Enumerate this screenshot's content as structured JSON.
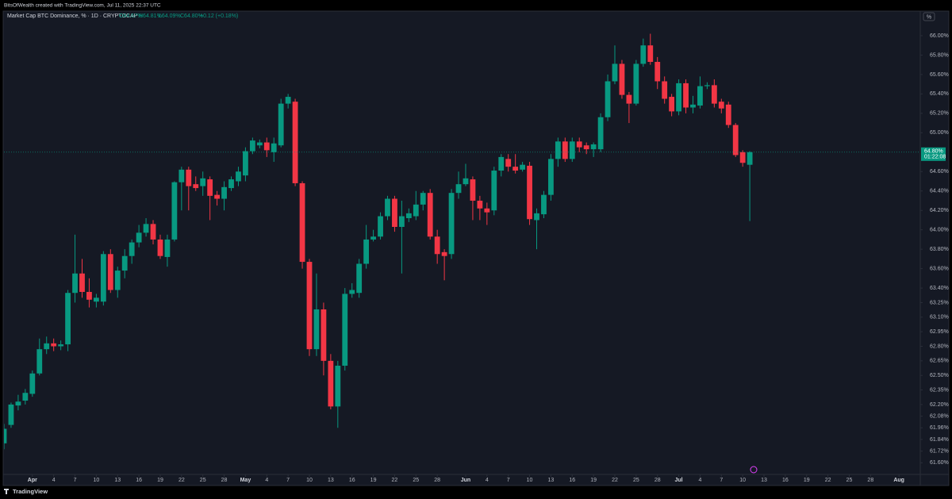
{
  "header": "BitsOfWealth created with TradingView.com, Jul 11, 2025 22:37 UTC",
  "footer": "TradingView",
  "chart_data": {
    "type": "candlestick",
    "title": "Market Cap BTC Dominance, % · 1D · CRYPTOCAP",
    "ohlc_legend": [
      "O64.67%",
      "H64.81%",
      "L64.09%",
      "C64.80%",
      "+0.12 (+0.18%)"
    ],
    "scale_button": "%",
    "up_color": "#089981",
    "down_color": "#f23645",
    "last_price": {
      "value": 64.8,
      "label": "64.80%"
    },
    "countdown": "01:22:08",
    "x": [
      "2025-03-28",
      "2025-03-29",
      "2025-03-30",
      "2025-03-31",
      "2025-04-01",
      "2025-04-02",
      "2025-04-03",
      "2025-04-04",
      "2025-04-05",
      "2025-04-06",
      "2025-04-07",
      "2025-04-08",
      "2025-04-09",
      "2025-04-10",
      "2025-04-11",
      "2025-04-12",
      "2025-04-13",
      "2025-04-14",
      "2025-04-15",
      "2025-04-16",
      "2025-04-17",
      "2025-04-18",
      "2025-04-19",
      "2025-04-20",
      "2025-04-21",
      "2025-04-22",
      "2025-04-23",
      "2025-04-24",
      "2025-04-25",
      "2025-04-26",
      "2025-04-27",
      "2025-04-28",
      "2025-04-29",
      "2025-04-30",
      "2025-05-01",
      "2025-05-02",
      "2025-05-03",
      "2025-05-04",
      "2025-05-05",
      "2025-05-06",
      "2025-05-07",
      "2025-05-08",
      "2025-05-09",
      "2025-05-10",
      "2025-05-11",
      "2025-05-12",
      "2025-05-13",
      "2025-05-14",
      "2025-05-15",
      "2025-05-16",
      "2025-05-17",
      "2025-05-18",
      "2025-05-19",
      "2025-05-20",
      "2025-05-21",
      "2025-05-22",
      "2025-05-23",
      "2025-05-24",
      "2025-05-25",
      "2025-05-26",
      "2025-05-27",
      "2025-05-28",
      "2025-05-29",
      "2025-05-30",
      "2025-05-31",
      "2025-06-01",
      "2025-06-02",
      "2025-06-03",
      "2025-06-04",
      "2025-06-05",
      "2025-06-06",
      "2025-06-07",
      "2025-06-08",
      "2025-06-09",
      "2025-06-10",
      "2025-06-11",
      "2025-06-12",
      "2025-06-13",
      "2025-06-14",
      "2025-06-15",
      "2025-06-16",
      "2025-06-17",
      "2025-06-18",
      "2025-06-19",
      "2025-06-20",
      "2025-06-21",
      "2025-06-22",
      "2025-06-23",
      "2025-06-24",
      "2025-06-25",
      "2025-06-26",
      "2025-06-27",
      "2025-06-28",
      "2025-06-29",
      "2025-06-30",
      "2025-07-01",
      "2025-07-02",
      "2025-07-03",
      "2025-07-04",
      "2025-07-05",
      "2025-07-06",
      "2025-07-07",
      "2025-07-08",
      "2025-07-09",
      "2025-07-10",
      "2025-07-11"
    ],
    "open": [
      61.8,
      61.99,
      62.19,
      62.24,
      62.31,
      62.52,
      62.77,
      62.83,
      62.8,
      62.82,
      63.35,
      63.55,
      63.36,
      63.26,
      63.26,
      63.75,
      63.38,
      63.58,
      63.73,
      63.87,
      63.97,
      64.06,
      63.9,
      63.72,
      63.9,
      64.49,
      64.62,
      64.47,
      64.45,
      64.52,
      64.36,
      64.32,
      64.43,
      64.5,
      64.56,
      64.81,
      64.87,
      64.9,
      64.8,
      64.87,
      65.3,
      65.32,
      64.48,
      63.67,
      62.77,
      63.18,
      62.65,
      62.18,
      62.6,
      63.34,
      63.35,
      63.65,
      63.9,
      63.93,
      64.14,
      64.32,
      64.03,
      64.12,
      64.14,
      64.26,
      64.38,
      63.93,
      63.77,
      63.75,
      64.38,
      64.47,
      64.52,
      64.3,
      64.22,
      64.2,
      64.61,
      64.73,
      64.65,
      64.62,
      64.66,
      64.1,
      64.16,
      64.36,
      64.73,
      64.91,
      64.73,
      64.91,
      64.87,
      64.83,
      64.83,
      65.16,
      65.53,
      65.71,
      65.39,
      65.3,
      65.71,
      65.9,
      65.73,
      65.53,
      65.37,
      65.22,
      65.51,
      65.26,
      65.28,
      65.48,
      65.49,
      65.32,
      65.29,
      65.08,
      64.8,
      64.67
    ],
    "high": [
      62.0,
      62.22,
      62.3,
      62.36,
      62.55,
      62.88,
      62.9,
      62.88,
      62.86,
      63.38,
      63.95,
      63.7,
      63.5,
      63.34,
      63.78,
      63.8,
      63.62,
      63.8,
      63.9,
      64.05,
      64.12,
      64.1,
      63.95,
      63.95,
      64.5,
      64.65,
      64.65,
      64.55,
      64.6,
      64.55,
      64.4,
      64.5,
      64.55,
      64.65,
      64.85,
      64.95,
      64.93,
      64.95,
      64.95,
      65.35,
      65.4,
      65.35,
      64.5,
      63.7,
      63.55,
      63.25,
      62.72,
      62.65,
      63.4,
      63.45,
      63.7,
      64.05,
      64.0,
      64.18,
      64.35,
      64.35,
      64.3,
      64.22,
      64.4,
      64.4,
      64.42,
      64.0,
      63.8,
      64.42,
      64.6,
      64.68,
      64.55,
      64.35,
      64.28,
      64.65,
      64.78,
      64.78,
      64.78,
      64.7,
      64.7,
      64.22,
      64.4,
      64.78,
      64.95,
      64.95,
      64.95,
      64.95,
      64.9,
      64.9,
      65.2,
      65.6,
      65.9,
      65.75,
      65.42,
      65.75,
      65.97,
      66.02,
      65.78,
      65.58,
      65.4,
      65.55,
      65.55,
      65.38,
      65.58,
      65.52,
      65.55,
      65.35,
      65.32,
      65.1,
      64.82,
      64.81
    ],
    "low": [
      61.74,
      61.96,
      62.14,
      62.2,
      62.28,
      62.5,
      62.72,
      62.75,
      62.76,
      62.75,
      63.25,
      63.3,
      63.2,
      63.2,
      63.22,
      63.35,
      63.3,
      63.5,
      63.65,
      63.82,
      63.93,
      63.85,
      63.7,
      63.62,
      63.88,
      64.2,
      64.2,
      64.4,
      64.35,
      64.1,
      64.25,
      64.2,
      64.4,
      64.45,
      64.5,
      64.78,
      64.84,
      64.75,
      64.7,
      64.85,
      65.25,
      64.45,
      63.6,
      62.7,
      62.7,
      62.5,
      62.15,
      61.96,
      62.55,
      63.3,
      63.3,
      63.6,
      63.88,
      63.9,
      64.1,
      63.98,
      63.55,
      64.08,
      64.1,
      64.2,
      63.9,
      63.65,
      63.48,
      63.7,
      64.32,
      64.45,
      64.1,
      64.1,
      64.05,
      64.15,
      64.55,
      64.6,
      64.58,
      64.6,
      64.05,
      63.8,
      64.12,
      64.3,
      64.65,
      64.7,
      64.7,
      64.8,
      64.78,
      64.75,
      64.8,
      65.12,
      65.5,
      65.35,
      65.1,
      65.28,
      65.68,
      65.7,
      65.45,
      65.3,
      65.17,
      65.18,
      65.2,
      65.2,
      65.25,
      65.45,
      65.26,
      65.2,
      65.05,
      64.75,
      64.65,
      64.09
    ],
    "close": [
      61.95,
      62.2,
      62.23,
      62.32,
      62.52,
      62.77,
      62.83,
      62.8,
      62.82,
      63.35,
      63.55,
      63.36,
      63.28,
      63.3,
      63.75,
      63.38,
      63.58,
      63.73,
      63.87,
      63.97,
      64.06,
      63.9,
      63.73,
      63.9,
      64.49,
      64.62,
      64.45,
      64.43,
      64.53,
      64.35,
      64.32,
      64.44,
      64.52,
      64.6,
      64.81,
      64.92,
      64.9,
      64.82,
      64.89,
      65.3,
      65.37,
      64.48,
      63.67,
      62.77,
      63.18,
      62.65,
      62.18,
      62.6,
      63.34,
      63.38,
      63.65,
      63.9,
      63.93,
      64.14,
      64.32,
      64.03,
      64.14,
      64.17,
      64.26,
      64.38,
      63.93,
      63.75,
      63.73,
      64.38,
      64.47,
      64.53,
      64.3,
      64.22,
      64.18,
      64.61,
      64.75,
      64.65,
      64.61,
      64.67,
      64.11,
      64.17,
      64.36,
      64.73,
      64.91,
      64.73,
      64.91,
      64.85,
      64.83,
      64.88,
      65.16,
      65.53,
      65.71,
      65.39,
      65.3,
      65.71,
      65.9,
      65.73,
      65.53,
      65.35,
      65.22,
      65.51,
      65.26,
      65.29,
      65.48,
      65.49,
      65.3,
      65.25,
      65.08,
      64.77,
      64.69,
      64.8
    ],
    "xlim": [
      "2025-03-28",
      "2025-08-04"
    ],
    "xticks": [
      {
        "value": "2025-04-01",
        "label": "Apr"
      },
      {
        "value": "2025-04-04",
        "label": "4"
      },
      {
        "value": "2025-04-07",
        "label": "7"
      },
      {
        "value": "2025-04-10",
        "label": "10"
      },
      {
        "value": "2025-04-13",
        "label": "13"
      },
      {
        "value": "2025-04-16",
        "label": "16"
      },
      {
        "value": "2025-04-19",
        "label": "19"
      },
      {
        "value": "2025-04-22",
        "label": "22"
      },
      {
        "value": "2025-04-25",
        "label": "25"
      },
      {
        "value": "2025-04-28",
        "label": "28"
      },
      {
        "value": "2025-05-01",
        "label": "May"
      },
      {
        "value": "2025-05-04",
        "label": "4"
      },
      {
        "value": "2025-05-07",
        "label": "7"
      },
      {
        "value": "2025-05-10",
        "label": "10"
      },
      {
        "value": "2025-05-13",
        "label": "13"
      },
      {
        "value": "2025-05-16",
        "label": "16"
      },
      {
        "value": "2025-05-19",
        "label": "19"
      },
      {
        "value": "2025-05-22",
        "label": "22"
      },
      {
        "value": "2025-05-25",
        "label": "25"
      },
      {
        "value": "2025-05-28",
        "label": "28"
      },
      {
        "value": "2025-06-01",
        "label": "Jun"
      },
      {
        "value": "2025-06-04",
        "label": "4"
      },
      {
        "value": "2025-06-07",
        "label": "7"
      },
      {
        "value": "2025-06-10",
        "label": "10"
      },
      {
        "value": "2025-06-13",
        "label": "13"
      },
      {
        "value": "2025-06-16",
        "label": "16"
      },
      {
        "value": "2025-06-19",
        "label": "19"
      },
      {
        "value": "2025-06-22",
        "label": "22"
      },
      {
        "value": "2025-06-25",
        "label": "25"
      },
      {
        "value": "2025-06-28",
        "label": "28"
      },
      {
        "value": "2025-07-01",
        "label": "Jul"
      },
      {
        "value": "2025-07-04",
        "label": "4"
      },
      {
        "value": "2025-07-07",
        "label": "7"
      },
      {
        "value": "2025-07-10",
        "label": "10"
      },
      {
        "value": "2025-07-13",
        "label": "13"
      },
      {
        "value": "2025-07-16",
        "label": "16"
      },
      {
        "value": "2025-07-19",
        "label": "19"
      },
      {
        "value": "2025-07-22",
        "label": "22"
      },
      {
        "value": "2025-07-25",
        "label": "25"
      },
      {
        "value": "2025-07-28",
        "label": "28"
      },
      {
        "value": "2025-08-01",
        "label": "Aug"
      }
    ],
    "ylim": [
      61.48,
      66.245
    ],
    "yticks": [
      {
        "value": 66,
        "label": "66.00%"
      },
      {
        "value": 65.8,
        "label": "65.80%"
      },
      {
        "value": 65.6,
        "label": "65.60%"
      },
      {
        "value": 65.4,
        "label": "65.40%"
      },
      {
        "value": 65.2,
        "label": "65.20%"
      },
      {
        "value": 65,
        "label": "65.00%"
      },
      {
        "value": 64.6,
        "label": "64.60%"
      },
      {
        "value": 64.4,
        "label": "64.40%"
      },
      {
        "value": 64.2,
        "label": "64.20%"
      },
      {
        "value": 64,
        "label": "64.00%"
      },
      {
        "value": 63.8,
        "label": "63.80%"
      },
      {
        "value": 63.6,
        "label": "63.60%"
      },
      {
        "value": 63.4,
        "label": "63.40%"
      },
      {
        "value": 63.25,
        "label": "63.25%"
      },
      {
        "value": 63.1,
        "label": "63.10%"
      },
      {
        "value": 62.95,
        "label": "62.95%"
      },
      {
        "value": 62.8,
        "label": "62.80%"
      },
      {
        "value": 62.65,
        "label": "62.65%"
      },
      {
        "value": 62.5,
        "label": "62.50%"
      },
      {
        "value": 62.35,
        "label": "62.35%"
      },
      {
        "value": 62.2,
        "label": "62.20%"
      },
      {
        "value": 62.08,
        "label": "62.08%"
      },
      {
        "value": 61.96,
        "label": "61.96%"
      },
      {
        "value": 61.84,
        "label": "61.84%"
      },
      {
        "value": 61.72,
        "label": "61.72%"
      },
      {
        "value": 61.6,
        "label": "61.60%"
      }
    ],
    "grid": false
  }
}
